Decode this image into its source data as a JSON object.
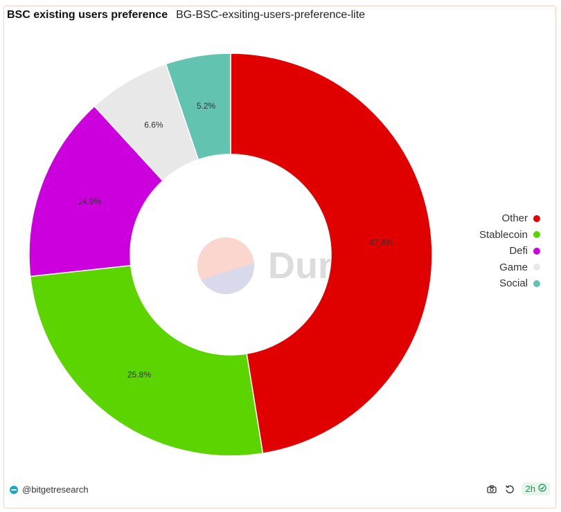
{
  "header": {
    "title": "BSC existing users preference",
    "subtitle": "BG-BSC-exsiting-users-preference-lite"
  },
  "watermark": {
    "text": "Dune"
  },
  "footer": {
    "author": "@bitgetresearch",
    "refresh_label": "2h",
    "icons": [
      "camera-icon",
      "refresh-icon",
      "check-circle-icon"
    ]
  },
  "chart_data": {
    "type": "pie",
    "donut": true,
    "categories": [
      "Other",
      "Stablecoin",
      "Defi",
      "Game",
      "Social"
    ],
    "values": [
      47.4,
      25.8,
      14.9,
      6.6,
      5.2
    ],
    "labels": [
      "47.4%",
      "25.8%",
      "14.9%",
      "6.6%",
      "5.2%"
    ],
    "colors": [
      "#e10000",
      "#5bd400",
      "#cc00dd",
      "#e8e8e8",
      "#62c3b1"
    ],
    "legend_position": "right",
    "start_angle_deg": 0,
    "direction": "clockwise"
  }
}
